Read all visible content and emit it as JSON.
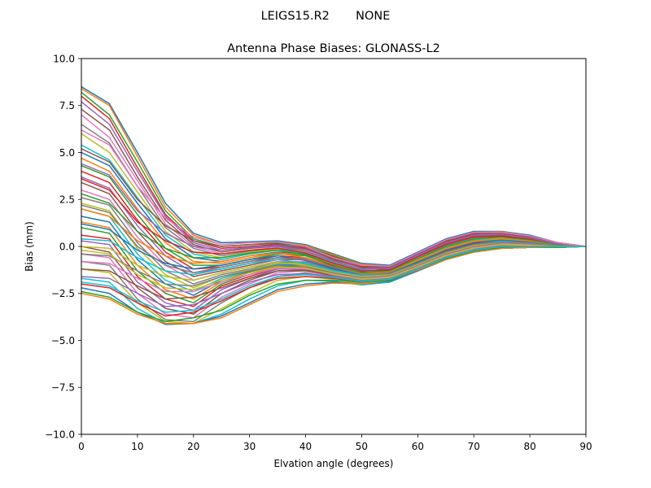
{
  "figure": {
    "suptitle": "LEIGS15.R2       NONE"
  },
  "chart_data": {
    "type": "line",
    "title": "Antenna Phase Biases: GLONASS-L2",
    "xlabel": "Elvation angle (degrees)",
    "ylabel": "Bias (mm)",
    "xlim": [
      0,
      90
    ],
    "ylim": [
      -10,
      10
    ],
    "xticks": [
      0,
      10,
      20,
      30,
      40,
      50,
      60,
      70,
      80,
      90
    ],
    "xtick_labels": [
      "0",
      "10",
      "20",
      "30",
      "40",
      "50",
      "60",
      "70",
      "80",
      "90"
    ],
    "yticks": [
      -10,
      -7.5,
      -5,
      -2.5,
      0,
      2.5,
      5,
      7.5,
      10
    ],
    "ytick_labels": [
      "−10.0",
      "−7.5",
      "−5.0",
      "−2.5",
      "0.0",
      "2.5",
      "5.0",
      "7.5",
      "10.0"
    ],
    "grid": false,
    "legend": "none",
    "x": [
      0,
      5,
      10,
      15,
      20,
      25,
      30,
      35,
      40,
      45,
      50,
      55,
      60,
      65,
      70,
      75,
      80,
      85,
      90
    ],
    "colors": [
      "#1f77b4",
      "#ff7f0e",
      "#2ca02c",
      "#d62728",
      "#9467bd",
      "#8c564b",
      "#e377c2",
      "#7f7f7f",
      "#bcbd22",
      "#17becf"
    ],
    "series": [
      {
        "values": [
          8.5,
          7.6,
          5.0,
          2.3,
          0.7,
          0.2,
          0.25,
          0.3,
          0.1,
          -0.4,
          -0.9,
          -1.0,
          -0.3,
          0.4,
          0.8,
          0.8,
          0.6,
          0.2,
          0.0
        ]
      },
      {
        "values": [
          8.4,
          7.5,
          4.8,
          2.1,
          0.6,
          0.1,
          0.2,
          0.25,
          0.05,
          -0.45,
          -0.95,
          -1.05,
          -0.35,
          0.35,
          0.75,
          0.78,
          0.55,
          0.2,
          0.0
        ]
      },
      {
        "values": [
          8.2,
          7.0,
          4.5,
          1.9,
          0.4,
          0.0,
          0.1,
          0.2,
          0.0,
          -0.5,
          -1.0,
          -1.1,
          -0.4,
          0.3,
          0.7,
          0.75,
          0.5,
          0.2,
          0.0
        ]
      },
      {
        "values": [
          8.0,
          6.8,
          4.2,
          1.7,
          0.3,
          -0.1,
          0.0,
          0.1,
          -0.05,
          -0.55,
          -1.05,
          -1.15,
          -0.45,
          0.25,
          0.65,
          0.7,
          0.5,
          0.15,
          0.0
        ]
      },
      {
        "values": [
          7.7,
          6.5,
          4.0,
          1.6,
          0.2,
          -0.2,
          -0.05,
          0.05,
          -0.1,
          -0.6,
          -1.1,
          -1.2,
          -0.5,
          0.2,
          0.6,
          0.65,
          0.45,
          0.15,
          0.0
        ]
      },
      {
        "values": [
          7.3,
          6.2,
          3.7,
          1.4,
          0.1,
          -0.3,
          -0.1,
          0.0,
          -0.15,
          -0.65,
          -1.15,
          -1.25,
          -0.55,
          0.15,
          0.55,
          0.6,
          0.45,
          0.15,
          0.0
        ]
      },
      {
        "values": [
          7.0,
          5.8,
          3.5,
          1.2,
          0.0,
          -0.4,
          -0.2,
          -0.05,
          -0.2,
          -0.7,
          -1.2,
          -1.3,
          -0.6,
          0.1,
          0.5,
          0.55,
          0.4,
          0.1,
          0.0
        ]
      },
      {
        "values": [
          6.5,
          5.5,
          3.2,
          1.0,
          -0.1,
          -0.5,
          -0.25,
          -0.1,
          -0.25,
          -0.75,
          -1.25,
          -1.35,
          -0.65,
          0.05,
          0.45,
          0.5,
          0.4,
          0.1,
          0.0
        ]
      },
      {
        "values": [
          6.0,
          5.0,
          2.9,
          0.8,
          -0.3,
          -0.6,
          -0.3,
          -0.15,
          -0.3,
          -0.8,
          -1.3,
          -1.4,
          -0.7,
          0.0,
          0.4,
          0.45,
          0.35,
          0.1,
          0.0
        ]
      },
      {
        "values": [
          5.4,
          4.6,
          2.6,
          0.6,
          -0.4,
          -0.7,
          -0.4,
          -0.2,
          -0.35,
          -0.85,
          -1.3,
          -1.4,
          -0.75,
          -0.05,
          0.35,
          0.4,
          0.35,
          0.1,
          0.0
        ]
      },
      {
        "values": [
          5.0,
          4.3,
          2.3,
          0.4,
          -0.6,
          -0.8,
          -0.5,
          -0.3,
          -0.4,
          -0.9,
          -1.35,
          -1.45,
          -0.8,
          -0.1,
          0.3,
          0.38,
          0.3,
          0.1,
          0.0
        ]
      },
      {
        "values": [
          4.7,
          4.0,
          2.0,
          0.2,
          -0.8,
          -0.9,
          -0.6,
          -0.35,
          -0.45,
          -0.95,
          -1.4,
          -1.5,
          -0.85,
          -0.15,
          0.25,
          0.35,
          0.3,
          0.1,
          0.0
        ]
      },
      {
        "values": [
          4.3,
          3.7,
          1.7,
          -0.1,
          -1.0,
          -1.0,
          -0.7,
          -0.4,
          -0.5,
          -1.0,
          -1.45,
          -1.5,
          -0.9,
          -0.2,
          0.2,
          0.3,
          0.25,
          0.05,
          0.0
        ]
      },
      {
        "values": [
          4.0,
          3.4,
          1.4,
          -0.3,
          -1.2,
          -1.1,
          -0.8,
          -0.5,
          -0.6,
          -1.05,
          -1.5,
          -1.55,
          -0.95,
          -0.25,
          0.15,
          0.28,
          0.25,
          0.05,
          0.0
        ]
      },
      {
        "values": [
          3.7,
          3.1,
          1.1,
          -0.5,
          -1.4,
          -1.2,
          -0.9,
          -0.6,
          -0.65,
          -1.1,
          -1.5,
          -1.55,
          -1.0,
          -0.3,
          0.1,
          0.25,
          0.2,
          0.05,
          0.0
        ]
      },
      {
        "values": [
          3.4,
          2.8,
          0.8,
          -0.8,
          -1.6,
          -1.3,
          -1.0,
          -0.7,
          -0.7,
          -1.15,
          -1.55,
          -1.6,
          -1.0,
          -0.35,
          0.05,
          0.2,
          0.2,
          0.05,
          0.0
        ]
      },
      {
        "values": [
          3.0,
          2.5,
          0.5,
          -1.0,
          -1.8,
          -1.4,
          -1.1,
          -0.8,
          -0.8,
          -1.2,
          -1.6,
          -1.6,
          -1.05,
          -0.4,
          0.0,
          0.18,
          0.15,
          0.05,
          0.0
        ]
      },
      {
        "values": [
          2.6,
          2.2,
          0.2,
          -1.3,
          -2.0,
          -1.5,
          -1.2,
          -0.85,
          -0.85,
          -1.25,
          -1.6,
          -1.65,
          -1.1,
          -0.45,
          -0.05,
          0.15,
          0.15,
          0.05,
          0.0
        ]
      },
      {
        "values": [
          2.3,
          1.9,
          -0.1,
          -1.5,
          -2.2,
          -1.6,
          -1.25,
          -0.9,
          -0.9,
          -1.3,
          -1.65,
          -1.65,
          -1.1,
          -0.5,
          -0.1,
          0.1,
          0.1,
          0.0,
          0.0
        ]
      },
      {
        "values": [
          2.0,
          1.6,
          -0.4,
          -1.8,
          -2.4,
          -1.7,
          -1.3,
          -0.95,
          -0.95,
          -1.3,
          -1.7,
          -1.7,
          -1.15,
          -0.55,
          -0.15,
          0.05,
          0.1,
          0.0,
          0.0
        ]
      },
      {
        "values": [
          1.6,
          1.3,
          -0.7,
          -2.0,
          -2.6,
          -1.8,
          -1.35,
          -1.0,
          -1.0,
          -1.35,
          -1.7,
          -1.7,
          -1.15,
          -0.6,
          -0.2,
          0.0,
          0.05,
          0.0,
          0.0
        ]
      },
      {
        "values": [
          1.3,
          1.0,
          -1.0,
          -2.3,
          -2.8,
          -1.9,
          -1.4,
          -1.05,
          -1.05,
          -1.4,
          -1.75,
          -1.75,
          -1.2,
          -0.6,
          -0.25,
          -0.05,
          0.0,
          0.0,
          0.0
        ]
      },
      {
        "values": [
          1.0,
          0.7,
          -1.3,
          -2.5,
          -3.0,
          -2.0,
          -1.5,
          -1.1,
          -1.1,
          -1.45,
          -1.8,
          -1.75,
          -1.2,
          -0.65,
          -0.25,
          -0.05,
          0.0,
          -0.05,
          0.0
        ]
      },
      {
        "values": [
          0.6,
          0.4,
          -1.6,
          -2.8,
          -3.2,
          -2.1,
          -1.6,
          -1.15,
          -1.15,
          -1.5,
          -1.8,
          -1.8,
          -1.25,
          -0.65,
          -0.3,
          -0.1,
          -0.05,
          -0.05,
          0.0
        ]
      },
      {
        "values": [
          0.3,
          0.1,
          -1.9,
          -3.0,
          -3.4,
          -2.3,
          -1.7,
          -1.2,
          -1.2,
          -1.55,
          -1.85,
          -1.8,
          -1.25,
          -0.7,
          -0.3,
          -0.1,
          -0.05,
          -0.05,
          0.0
        ]
      },
      {
        "values": [
          0.0,
          -0.3,
          -2.2,
          -3.3,
          -3.6,
          -2.5,
          -1.8,
          -1.3,
          -1.25,
          -1.6,
          -1.9,
          -1.85,
          -1.3,
          -0.7,
          -0.3,
          -0.1,
          -0.05,
          -0.05,
          0.0
        ]
      },
      {
        "values": [
          -0.4,
          -0.6,
          -2.5,
          -3.6,
          -3.8,
          -2.7,
          -2.0,
          -1.4,
          -1.3,
          -1.65,
          -1.95,
          -1.85,
          -1.3,
          -0.7,
          -0.3,
          -0.1,
          -0.05,
          -0.05,
          0.0
        ]
      },
      {
        "values": [
          -0.8,
          -1.0,
          -2.8,
          -3.9,
          -4.0,
          -3.0,
          -2.2,
          -1.6,
          -1.4,
          -1.7,
          -2.0,
          -1.9,
          -1.3,
          -0.7,
          -0.3,
          -0.1,
          -0.05,
          -0.05,
          0.0
        ]
      },
      {
        "values": [
          -1.2,
          -1.4,
          -3.0,
          -4.0,
          -4.1,
          -3.3,
          -2.5,
          -1.8,
          -1.6,
          -1.75,
          -2.0,
          -1.9,
          -1.3,
          -0.7,
          -0.3,
          -0.1,
          -0.05,
          -0.05,
          0.0
        ]
      },
      {
        "values": [
          -1.7,
          -1.9,
          -3.3,
          -4.1,
          -4.1,
          -3.6,
          -2.8,
          -2.1,
          -1.8,
          -1.85,
          -2.05,
          -1.9,
          -1.3,
          -0.7,
          -0.3,
          -0.1,
          -0.05,
          -0.05,
          0.0
        ]
      },
      {
        "values": [
          -2.2,
          -2.5,
          -3.5,
          -4.15,
          -4.1,
          -3.7,
          -3.0,
          -2.3,
          -2.0,
          -1.9,
          -2.0,
          -1.85,
          -1.3,
          -0.7,
          -0.3,
          -0.1,
          -0.05,
          -0.05,
          0.0
        ]
      },
      {
        "values": [
          -2.5,
          -2.8,
          -3.6,
          -4.1,
          -4.1,
          -3.8,
          -3.1,
          -2.4,
          -2.1,
          -1.95,
          -2.0,
          -1.8,
          -1.25,
          -0.7,
          -0.3,
          -0.1,
          -0.05,
          -0.05,
          0.0
        ]
      },
      {
        "values": [
          -2.4,
          -2.7,
          -3.5,
          -4.0,
          -3.8,
          -3.4,
          -2.6,
          -2.0,
          -1.8,
          -1.8,
          -1.9,
          -1.8,
          -1.2,
          -0.65,
          -0.25,
          -0.05,
          0.0,
          -0.05,
          0.0
        ]
      },
      {
        "values": [
          -2.0,
          -2.2,
          -3.0,
          -3.7,
          -3.5,
          -2.9,
          -2.2,
          -1.7,
          -1.6,
          -1.7,
          -1.85,
          -1.75,
          -1.2,
          -0.6,
          -0.2,
          0.0,
          0.0,
          0.0,
          0.0
        ]
      },
      {
        "values": [
          -1.6,
          -1.7,
          -2.5,
          -3.2,
          -3.1,
          -2.5,
          -1.9,
          -1.5,
          -1.45,
          -1.6,
          -1.8,
          -1.7,
          -1.15,
          -0.55,
          -0.15,
          0.05,
          0.05,
          0.0,
          0.0
        ]
      },
      {
        "values": [
          -1.2,
          -1.3,
          -2.1,
          -2.8,
          -2.7,
          -2.2,
          -1.7,
          -1.3,
          -1.3,
          -1.5,
          -1.75,
          -1.65,
          -1.1,
          -0.5,
          -0.1,
          0.1,
          0.1,
          0.0,
          0.0
        ]
      },
      {
        "values": [
          -0.8,
          -0.9,
          -1.7,
          -2.4,
          -2.4,
          -1.9,
          -1.5,
          -1.15,
          -1.2,
          -1.45,
          -1.7,
          -1.6,
          -1.05,
          -0.45,
          -0.05,
          0.15,
          0.1,
          0.05,
          0.0
        ]
      },
      {
        "values": [
          -0.4,
          -0.5,
          -1.3,
          -2.0,
          -2.1,
          -1.6,
          -1.3,
          -1.0,
          -1.1,
          -1.4,
          -1.65,
          -1.55,
          -1.0,
          -0.4,
          0.0,
          0.2,
          0.15,
          0.05,
          0.0
        ]
      },
      {
        "values": [
          0.0,
          -0.1,
          -1.0,
          -1.6,
          -1.8,
          -1.4,
          -1.1,
          -0.85,
          -1.0,
          -1.35,
          -1.6,
          -1.5,
          -0.95,
          -0.35,
          0.05,
          0.25,
          0.2,
          0.05,
          0.0
        ]
      },
      {
        "values": [
          0.4,
          0.3,
          -0.6,
          -1.3,
          -1.5,
          -1.2,
          -0.9,
          -0.7,
          -0.9,
          -1.3,
          -1.55,
          -1.45,
          -0.9,
          -0.3,
          0.1,
          0.3,
          0.2,
          0.05,
          0.0
        ]
      },
      {
        "values": [
          1.2,
          0.9,
          -0.2,
          -0.9,
          -1.2,
          -1.0,
          -0.7,
          -0.5,
          -0.75,
          -1.2,
          -1.5,
          -1.4,
          -0.85,
          -0.2,
          0.2,
          0.35,
          0.25,
          0.1,
          0.0
        ]
      },
      {
        "values": [
          2.0,
          1.6,
          0.3,
          -0.5,
          -0.9,
          -0.8,
          -0.5,
          -0.35,
          -0.6,
          -1.1,
          -1.45,
          -1.35,
          -0.75,
          -0.1,
          0.3,
          0.4,
          0.3,
          0.1,
          0.0
        ]
      },
      {
        "values": [
          2.8,
          2.3,
          0.8,
          -0.1,
          -0.6,
          -0.6,
          -0.35,
          -0.2,
          -0.45,
          -1.0,
          -1.4,
          -1.3,
          -0.65,
          0.0,
          0.4,
          0.5,
          0.35,
          0.1,
          0.0
        ]
      },
      {
        "values": [
          3.6,
          3.0,
          1.3,
          0.3,
          -0.3,
          -0.4,
          -0.2,
          -0.1,
          -0.35,
          -0.9,
          -1.3,
          -1.25,
          -0.55,
          0.1,
          0.5,
          0.55,
          0.4,
          0.15,
          0.0
        ]
      },
      {
        "values": [
          4.4,
          3.8,
          1.9,
          0.7,
          0.0,
          -0.2,
          -0.05,
          0.0,
          -0.25,
          -0.8,
          -1.2,
          -1.15,
          -0.45,
          0.2,
          0.6,
          0.65,
          0.45,
          0.15,
          0.0
        ]
      },
      {
        "values": [
          5.2,
          4.5,
          2.5,
          1.1,
          0.3,
          0.0,
          0.1,
          0.15,
          -0.1,
          -0.7,
          -1.1,
          -1.1,
          -0.4,
          0.3,
          0.7,
          0.7,
          0.5,
          0.2,
          0.0
        ]
      },
      {
        "values": [
          6.2,
          5.4,
          3.2,
          1.5,
          0.5,
          0.1,
          0.2,
          0.25,
          0.0,
          -0.6,
          -1.0,
          -1.05,
          -0.35,
          0.35,
          0.75,
          0.75,
          0.55,
          0.2,
          0.0
        ]
      },
      {
        "values": [
          2.2,
          1.8,
          0.0,
          -1.0,
          -1.4,
          -1.1,
          -0.8,
          -0.6,
          -0.7,
          -1.1,
          -1.5,
          -1.45,
          -0.9,
          -0.3,
          0.1,
          0.25,
          0.2,
          0.05,
          0.0
        ]
      },
      {
        "values": [
          -0.2,
          -0.4,
          -1.5,
          -2.2,
          -2.3,
          -1.8,
          -1.4,
          -1.1,
          -1.15,
          -1.5,
          -1.75,
          -1.65,
          -1.1,
          -0.5,
          -0.1,
          0.1,
          0.05,
          0.0,
          0.0
        ]
      },
      {
        "values": [
          -1.9,
          -2.1,
          -2.9,
          -3.5,
          -3.4,
          -2.8,
          -2.1,
          -1.6,
          -1.5,
          -1.65,
          -1.85,
          -1.75,
          -1.2,
          -0.6,
          -0.2,
          0.0,
          0.0,
          0.0,
          0.0
        ]
      }
    ]
  }
}
